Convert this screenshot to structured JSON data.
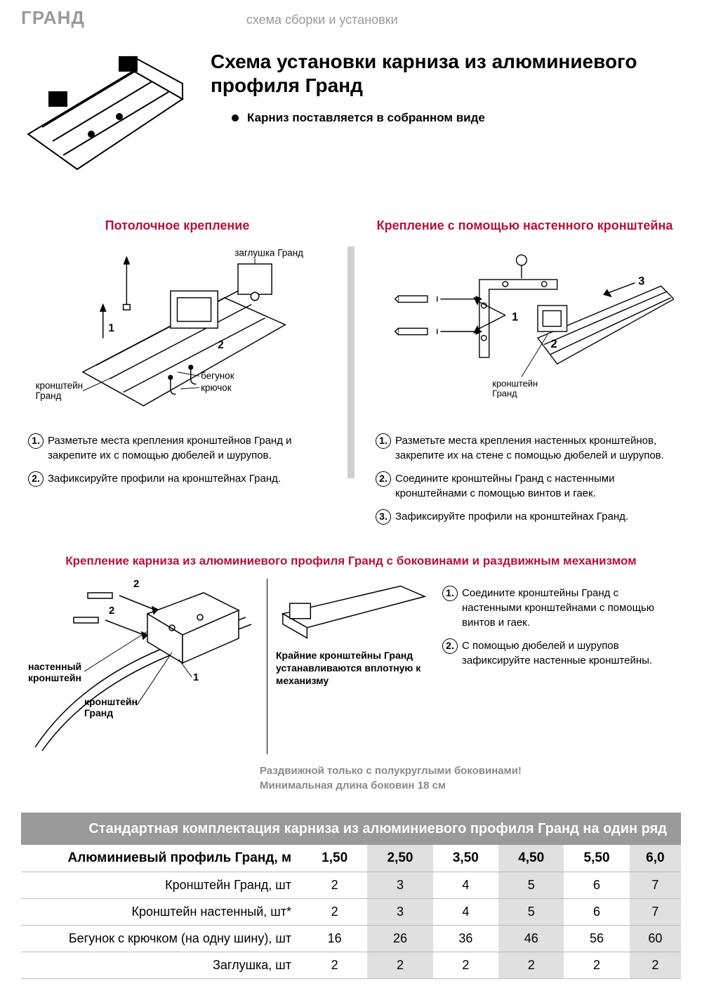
{
  "header": {
    "brand": "ГРАНД",
    "subtitle": "схема сборки и установки"
  },
  "hero": {
    "title": "Схема  установки карниза из алюминиевого профиля Гранд",
    "bullet": "Карниз поставляется в собранном виде"
  },
  "ceiling": {
    "title": "Потолочное крепление",
    "labels": {
      "plug": "заглушка Гранд",
      "bracket_l1": "кронштейн",
      "bracket_l2": "Гранд",
      "runner": "бегунок",
      "hook": "крючок",
      "n1": "1",
      "n2": "2"
    },
    "steps": [
      "Разметьте места  крепления кронштейнов  Гранд и закрепите их  с помощью  дюбелей и шурупов.",
      "Зафиксируйте профили на кронштейнах  Гранд."
    ]
  },
  "wall": {
    "title": "Крепление с помощью настенного кронштейна",
    "labels": {
      "bracket_l1": "кронштейн",
      "bracket_l2": "Гранд",
      "n1": "1",
      "n2": "2",
      "n3": "3"
    },
    "steps": [
      "Разметьте места крепления  настенных кронштейнов, закрепите их  на стене с помощью   дюбелей  и  шурупов.",
      "Соедините кронштейны  Гранд  с настенными кронштейнами с помощью  винтов и гаек.",
      "Зафиксируйте профили  на кронштейнах  Гранд."
    ]
  },
  "sliding": {
    "title": "Крепление карниза из алюминиевого профиля Гранд с боковинами и раздвижным механизмом",
    "labels": {
      "wall_l1": "настенный",
      "wall_l2": "кронштейн",
      "bracket_l1": "кронштейн",
      "bracket_l2": "Гранд",
      "n1": "1",
      "n2a": "2",
      "n2b": "2"
    },
    "mid_caption": "Крайние кронштейны Гранд устанавливаются вплотную к механизму",
    "steps": [
      "Соедините кронштейны Гранд с настенными кронштейнами с помощью винтов и гаек.",
      "С помощью дюбелей и шурупов зафиксируйте настенные кронштейны."
    ],
    "notes": [
      "Раздвижной только с полукруглыми боковинами!",
      "Минимальная длина боковин 18 см"
    ]
  },
  "table": {
    "header": "Стандартная комплектация карниза из алюминиевого профиля Гранд на один ряд",
    "col_header": "Алюминиевый профиль Гранд, м",
    "cols": [
      "1,50",
      "2,50",
      "3,50",
      "4,50",
      "5,50",
      "6,0"
    ],
    "shaded_cols": [
      1,
      3,
      5
    ],
    "rows": [
      {
        "label": "Кронштейн Гранд, шт",
        "vals": [
          "2",
          "3",
          "4",
          "5",
          "6",
          "7"
        ]
      },
      {
        "label": "Кронштейн настенный, шт*",
        "vals": [
          "2",
          "3",
          "4",
          "5",
          "6",
          "7"
        ]
      },
      {
        "label": "Бегунок с крючком (на одну шину), шт",
        "vals": [
          "16",
          "26",
          "36",
          "46",
          "56",
          "60"
        ]
      },
      {
        "label": "Заглушка, шт",
        "vals": [
          "2",
          "2",
          "2",
          "2",
          "2",
          "2"
        ]
      }
    ]
  },
  "colors": {
    "accent": "#b5123a",
    "grey_text": "#9a9a9a",
    "table_hdr_bg": "#9a9a9a",
    "shade_bg": "#e0e0e0"
  }
}
